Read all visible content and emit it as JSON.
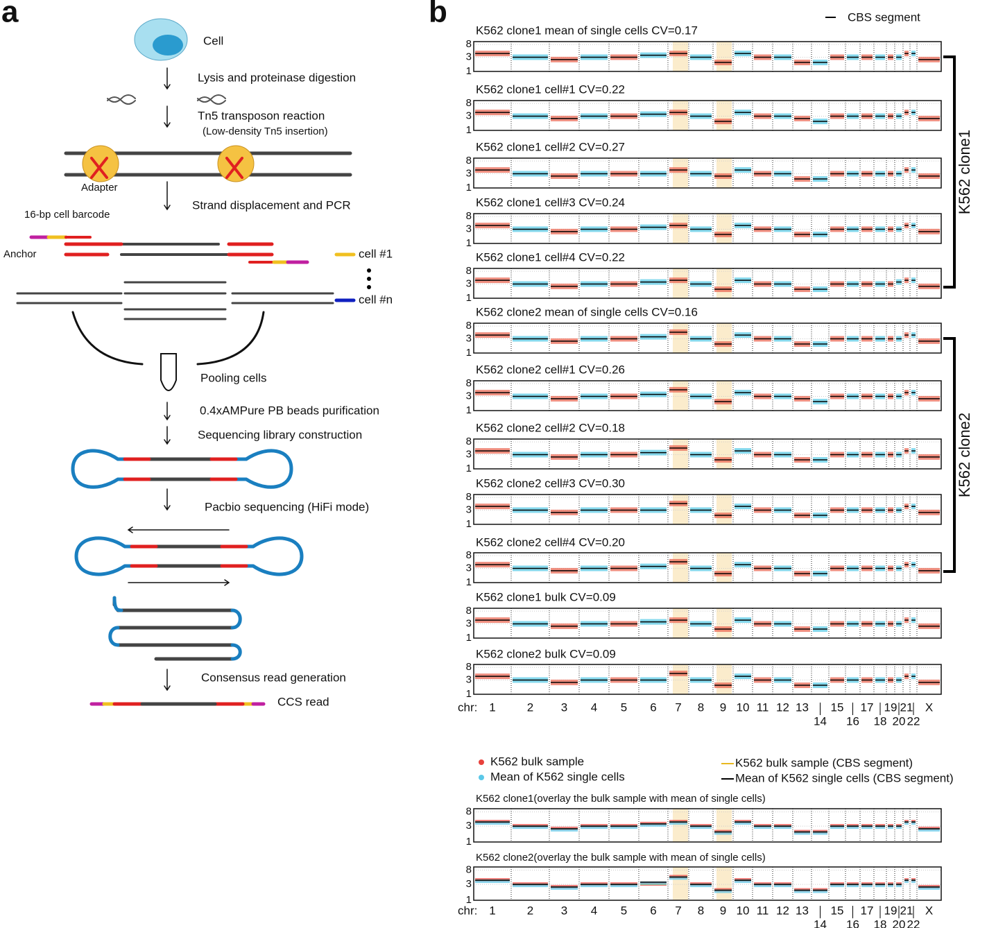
{
  "panel_a": {
    "label": "a",
    "cell": "Cell",
    "lysis": "Lysis and proteinase digestion",
    "tn5": "Tn5 transposon reaction",
    "tn5_note": "(Low-density Tn5 insertion)",
    "adapter": "Adapter",
    "strand": "Strand displacement and PCR",
    "barcode": "16-bp cell barcode",
    "anchor": "Anchor",
    "cell1": "cell #1",
    "celln": "cell #n",
    "pooling": "Pooling cells",
    "ampure": "0.4xAMPure PB beads purification",
    "library": "Sequencing library construction",
    "pacbio": "Pacbio sequencing (HiFi mode)",
    "consensus": "Consensus read generation",
    "ccs": "CCS read"
  },
  "chart_data": {
    "type": "copy-number",
    "panel_label": "b",
    "segment_legend": "CBS segment",
    "chr_axis_label": "chr:",
    "chromosomes": [
      "1",
      "2",
      "3",
      "4",
      "5",
      "6",
      "7",
      "8",
      "9",
      "10",
      "11",
      "12",
      "13",
      "14",
      "15",
      "16",
      "17",
      "18",
      "19",
      "20",
      "21",
      "22",
      "X"
    ],
    "ylim": [
      1,
      10
    ],
    "yticks": [
      1,
      3,
      8
    ],
    "log_scale": true,
    "grid": true,
    "point_colors": [
      "#ea6a55",
      "#5ccbe6"
    ],
    "tracks": [
      {
        "title": "K562 clone1 mean of single cells CV=0.17",
        "values": [
          4,
          3,
          2.5,
          3,
          3,
          3.5,
          4,
          3,
          2,
          4,
          3,
          3,
          2,
          2,
          3,
          3,
          3,
          3,
          3,
          3,
          4,
          4,
          2.5
        ]
      },
      {
        "title": "K562 clone1 cell#1 CV=0.22",
        "values": [
          4,
          3,
          2.5,
          3,
          3,
          3.5,
          4,
          3,
          2,
          4,
          3,
          3,
          2.5,
          2,
          3,
          3,
          3,
          3,
          3,
          3,
          4,
          4,
          2.5
        ]
      },
      {
        "title": "K562 clone1 cell#2 CV=0.27",
        "values": [
          4,
          3,
          2.5,
          3,
          3,
          3,
          4,
          3,
          2.5,
          4,
          3,
          3,
          2,
          2,
          3,
          3,
          3,
          3,
          3,
          3,
          4,
          4,
          2.5
        ]
      },
      {
        "title": "K562 clone1 cell#3 CV=0.24",
        "values": [
          4,
          3,
          2.5,
          3,
          3,
          3.5,
          4,
          3,
          2,
          4,
          3,
          3,
          2,
          2,
          3,
          3,
          3,
          3,
          3,
          3,
          4,
          4,
          2.5
        ]
      },
      {
        "title": "K562 clone1 cell#4 CV=0.22",
        "values": [
          4,
          3,
          2.5,
          3,
          3,
          3.5,
          4,
          3,
          2,
          4,
          3,
          3,
          2,
          2,
          3,
          3,
          3,
          3,
          3,
          3.5,
          4,
          4,
          2.5
        ]
      },
      {
        "title": "K562 clone2 mean of single cells CV=0.16",
        "values": [
          4,
          3,
          2.5,
          3,
          3,
          3.5,
          5,
          3,
          2,
          4,
          3,
          3,
          2,
          2,
          3,
          3,
          3,
          3,
          3,
          3,
          4,
          4,
          2.5
        ]
      },
      {
        "title": "K562 clone2 cell#1 CV=0.26",
        "values": [
          4,
          3,
          2.5,
          3,
          3,
          3.5,
          5,
          3,
          2,
          4,
          3,
          3,
          2.5,
          2,
          3,
          3,
          3,
          3,
          3,
          3,
          4,
          4,
          2.5
        ]
      },
      {
        "title": "K562 clone2 cell#2 CV=0.18",
        "values": [
          4,
          3,
          2.5,
          3,
          3,
          3.5,
          5,
          3,
          2,
          4,
          3,
          3,
          2,
          2,
          3,
          3,
          3,
          3,
          3,
          3,
          4,
          4,
          2.5
        ]
      },
      {
        "title": "K562 clone2 cell#3 CV=0.30",
        "values": [
          4,
          3,
          2.5,
          3,
          3,
          3,
          5,
          3,
          2,
          4,
          3,
          3,
          2,
          2,
          3,
          3,
          3,
          3,
          3,
          3,
          4,
          4,
          2.5
        ]
      },
      {
        "title": "K562 clone2 cell#4 CV=0.20",
        "values": [
          4,
          3,
          2.5,
          3,
          3,
          3.5,
          5,
          3,
          2,
          4,
          3,
          3,
          2,
          2,
          3,
          3,
          3,
          3,
          3,
          3,
          4,
          4,
          2.5
        ]
      },
      {
        "title": "K562 clone1 bulk CV=0.09",
        "values": [
          4,
          3,
          2.5,
          3,
          3,
          3.5,
          4,
          3,
          2,
          4,
          3,
          3,
          2,
          2,
          3,
          3,
          3,
          3,
          3,
          3,
          4,
          4,
          2.5
        ]
      },
      {
        "title": "K562 clone2 bulk CV=0.09",
        "values": [
          4,
          3,
          2.5,
          3,
          3,
          3,
          5,
          3,
          2,
          4,
          3,
          3,
          2,
          2,
          3,
          3,
          3,
          3,
          3,
          3,
          4,
          4,
          2.5
        ]
      }
    ],
    "groups": [
      {
        "label": "K562 clone1",
        "from": 0,
        "to": 4
      },
      {
        "label": "K562 clone2",
        "from": 5,
        "to": 9
      }
    ],
    "series_names": [
      "K562 bulk sample",
      "Mean of K562 single cells"
    ],
    "series_colors": [
      "#e8413c",
      "#5bc8e8"
    ],
    "segment_names": [
      "K562 bulk sample (CBS segment)",
      "Mean of K562 single cells (CBS segment)"
    ],
    "segment_colors": [
      "#e8b820",
      "#000000"
    ],
    "overlays": [
      {
        "title": "K562 clone1(overlay the bulk sample with mean of single cells)",
        "bulk": [
          4,
          3,
          2.5,
          3,
          3,
          3.5,
          4,
          3,
          2,
          4,
          3,
          3,
          2,
          2,
          3,
          3,
          3,
          3,
          3,
          3,
          4,
          4,
          2.5
        ],
        "mean": [
          4,
          3,
          2.5,
          3,
          3,
          3.5,
          4,
          3,
          2,
          4,
          3,
          3,
          2,
          2,
          3,
          3,
          3,
          3,
          3,
          3,
          4,
          4,
          2.5
        ]
      },
      {
        "title": "K562 clone2(overlay the bulk sample with mean of single cells)",
        "bulk": [
          4,
          3,
          2.5,
          3,
          3,
          3,
          5,
          3,
          2,
          4,
          3,
          3,
          2,
          2,
          3,
          3,
          3,
          3,
          3,
          3,
          4,
          4,
          2.5
        ],
        "mean": [
          4,
          3,
          2.5,
          3,
          3,
          3.5,
          5,
          3,
          2,
          4,
          3,
          3,
          2,
          2,
          3,
          3,
          3,
          3,
          3,
          3,
          4,
          4,
          2.5
        ]
      }
    ]
  }
}
